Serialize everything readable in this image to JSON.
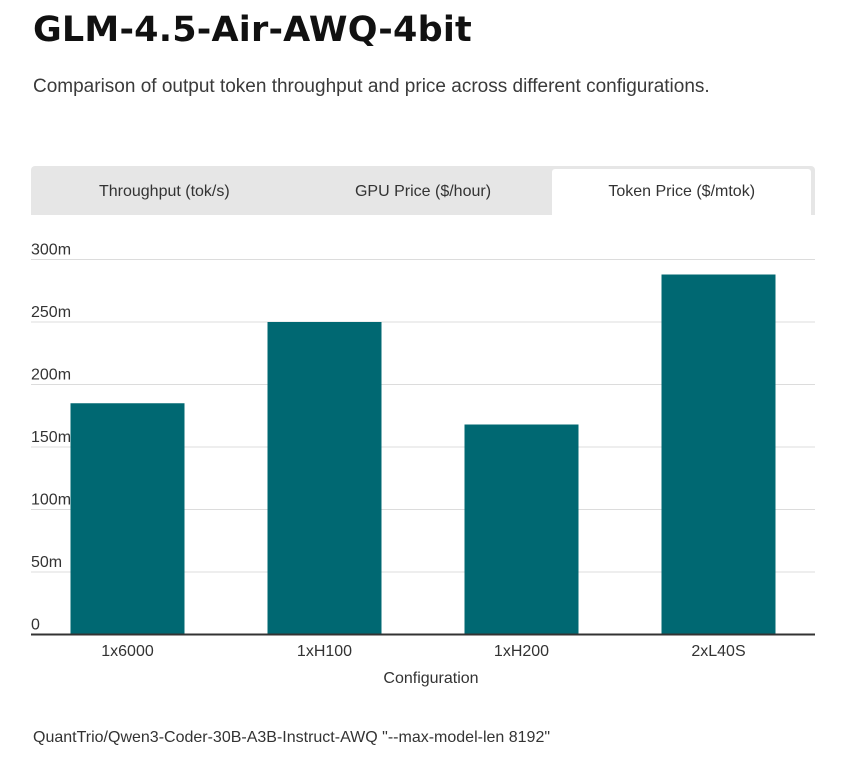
{
  "header": {
    "title": "GLM-4.5-Air-AWQ-4bit",
    "subtitle": "Comparison of output token throughput and price across different configurations."
  },
  "tabs": [
    {
      "label": "Throughput (tok/s)",
      "active": false
    },
    {
      "label": "GPU Price ($/hour)",
      "active": false
    },
    {
      "label": "Token Price ($/mtok)",
      "active": true
    }
  ],
  "chart_data": {
    "type": "bar",
    "categories": [
      "1x6000",
      "1xH100",
      "1xH200",
      "2xL40S"
    ],
    "values": [
      0.185,
      0.25,
      0.168,
      0.288
    ],
    "xlabel": "Configuration",
    "ylabel": "",
    "ylim": [
      0,
      0.3
    ],
    "yticks": [
      0,
      0.05,
      0.1,
      0.15,
      0.2,
      0.25,
      0.3
    ],
    "ytick_labels": [
      "0",
      "50m",
      "100m",
      "150m",
      "200m",
      "250m",
      "300m"
    ],
    "bar_color": "#006872",
    "grid": true,
    "legend": "none"
  },
  "footer": {
    "note": "QuantTrio/Qwen3-Coder-30B-A3B-Instruct-AWQ \"--max-model-len 8192\""
  }
}
